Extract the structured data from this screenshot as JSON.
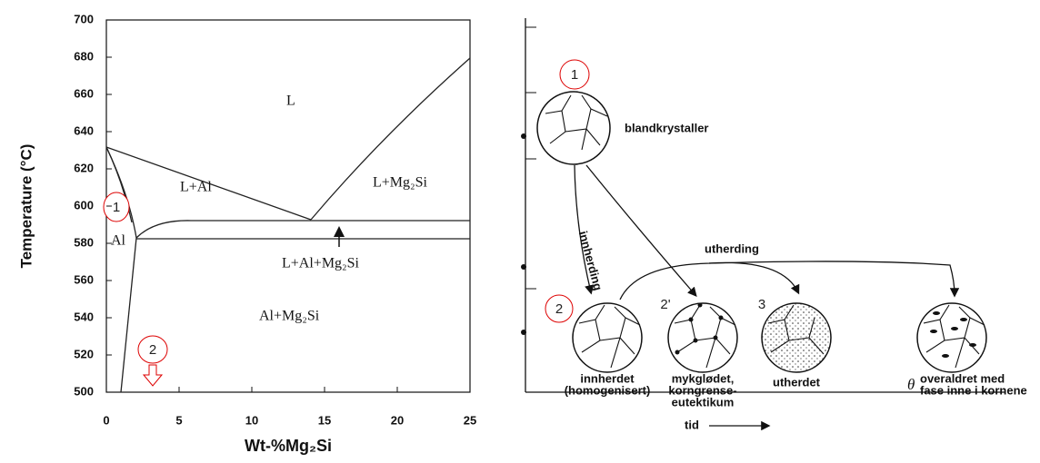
{
  "phase_diagram": {
    "y_axis_label": "Temperature (°C)",
    "x_axis_label": "Wt-%Mg₂Si",
    "xlim": [
      0,
      25
    ],
    "xticks": [
      0,
      5,
      10,
      15,
      20,
      25
    ],
    "ylim": [
      500,
      700
    ],
    "yticks": [
      500,
      520,
      540,
      560,
      580,
      600,
      620,
      640,
      660,
      680,
      700
    ],
    "regions": [
      "L",
      "L+Al",
      "L+Mg₂Si",
      "Al",
      "L+Al+Mg₂Si",
      "Al+Mg₂Si"
    ],
    "markers": [
      "1",
      "2"
    ]
  },
  "microstructure": {
    "start": {
      "marker": "1",
      "label": "blandkrystaller"
    },
    "arrows": [
      "innherding",
      "utherding"
    ],
    "states": [
      {
        "marker": "2",
        "label": [
          "innherdet",
          "(homogenisert)"
        ]
      },
      {
        "marker": "2'",
        "label": [
          "mykglødet,",
          "korngrense-",
          "eutektikum"
        ]
      },
      {
        "marker": "3",
        "label": [
          "utherdet"
        ]
      },
      {
        "symbol": "θ",
        "label": [
          "overaldret med",
          "fase inne i kornene"
        ]
      }
    ],
    "time_label": "tid"
  }
}
